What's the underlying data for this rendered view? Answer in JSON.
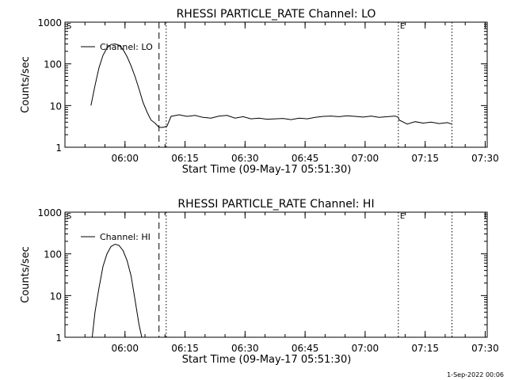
{
  "footer": "1-Sep-2022 00:06",
  "chart_data": [
    {
      "type": "line",
      "title": "RHESSI PARTICLE_RATE Channel: LO",
      "xlabel": "Start Time (09-May-17 05:51:30)",
      "ylabel": "Counts/sec",
      "yscale": "log",
      "xlim_min": [
        -6.5,
        99
      ],
      "ylim": [
        1,
        1000
      ],
      "xticks": [
        8.5,
        23.5,
        38.5,
        53.5,
        68.5,
        83.5,
        98.5
      ],
      "xtick_labels": [
        "06:00",
        "06:15",
        "06:30",
        "06:45",
        "07:00",
        "07:15",
        "07:30"
      ],
      "yticks": [
        1,
        10,
        100,
        1000
      ],
      "ytick_labels": [
        "1",
        "10",
        "100",
        "1000"
      ],
      "legend": {
        "position": "top-left",
        "entry": "Channel: LO"
      },
      "markers": {
        "left_letter": "S",
        "right_letter": "E",
        "dashed_x": 17,
        "dotted_x": [
          18.8,
          76.8,
          90.2
        ]
      },
      "series": [
        {
          "x": [
            0,
            1,
            2,
            3,
            4,
            5,
            6,
            7,
            8,
            9,
            10,
            11,
            12,
            13,
            14,
            15,
            16,
            17,
            18,
            19,
            20,
            22,
            24,
            26,
            28,
            30,
            32,
            34,
            36,
            38,
            40,
            42,
            44,
            46,
            48,
            50,
            52,
            54,
            56,
            58,
            60,
            62,
            64,
            66,
            68,
            70,
            72,
            74,
            76,
            76.8,
            77,
            79,
            81,
            83,
            85,
            87,
            89,
            90.2
          ],
          "values": [
            10,
            30,
            80,
            160,
            240,
            290,
            300,
            280,
            220,
            150,
            90,
            50,
            25,
            12,
            7,
            4.5,
            3.8,
            3,
            3,
            3.2,
            5.5,
            6,
            5.5,
            5.8,
            5.2,
            5,
            5.6,
            5.8,
            5,
            5.4,
            4.8,
            5,
            4.7,
            4.8,
            4.9,
            4.6,
            5,
            4.8,
            5.2,
            5.5,
            5.6,
            5.4,
            5.7,
            5.5,
            5.3,
            5.6,
            5.2,
            5.4,
            5.6,
            5.2,
            4.5,
            3.6,
            4.1,
            3.8,
            4,
            3.7,
            3.9,
            3.6
          ]
        }
      ]
    },
    {
      "type": "line",
      "title": "RHESSI PARTICLE_RATE Channel: HI",
      "xlabel": "Start Time (09-May-17 05:51:30)",
      "ylabel": "Counts/sec",
      "yscale": "log",
      "xlim_min": [
        -6.5,
        99
      ],
      "ylim": [
        1,
        1000
      ],
      "xticks": [
        8.5,
        23.5,
        38.5,
        53.5,
        68.5,
        83.5,
        98.5
      ],
      "xtick_labels": [
        "06:00",
        "06:15",
        "06:30",
        "06:45",
        "07:00",
        "07:15",
        "07:30"
      ],
      "yticks": [
        1,
        10,
        100,
        1000
      ],
      "ytick_labels": [
        "1",
        "10",
        "100",
        "1000"
      ],
      "legend": {
        "position": "top-left",
        "entry": "Channel: HI"
      },
      "markers": {
        "left_letter": "S",
        "right_letter": "E",
        "dashed_x": 17,
        "dotted_x": [
          18.8,
          76.8,
          90.2
        ]
      },
      "series": [
        {
          "x": [
            0.3,
            1,
            2,
            3,
            4,
            5,
            6,
            7,
            8,
            9,
            10,
            11,
            12,
            12.7
          ],
          "values": [
            1,
            4,
            15,
            50,
            100,
            150,
            170,
            160,
            120,
            70,
            30,
            8,
            2,
            1
          ]
        }
      ]
    }
  ]
}
